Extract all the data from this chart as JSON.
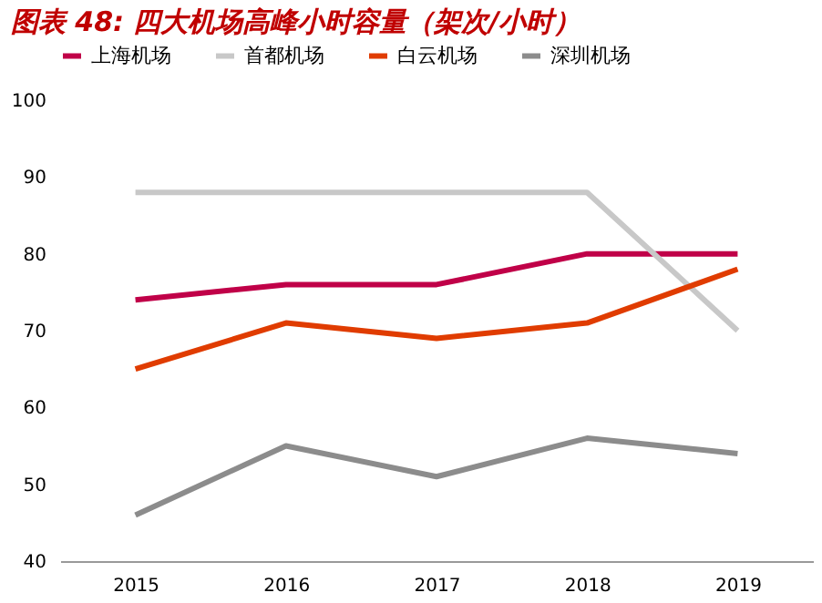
{
  "chart_data": {
    "type": "line",
    "title": "图表 48:  四大机场高峰小时容量（架次/小时）",
    "categories": [
      "2015",
      "2016",
      "2017",
      "2018",
      "2019"
    ],
    "series": [
      {
        "name": "上海机场",
        "color": "#c00048",
        "values": [
          74,
          76,
          76,
          80,
          80
        ]
      },
      {
        "name": "首都机场",
        "color": "#c8c8c8",
        "values": [
          88,
          88,
          88,
          88,
          70
        ]
      },
      {
        "name": "白云机场",
        "color": "#e03c00",
        "values": [
          65,
          71,
          69,
          71,
          78
        ]
      },
      {
        "name": "深圳机场",
        "color": "#8c8c8c",
        "values": [
          46,
          55,
          51,
          56,
          54
        ]
      }
    ],
    "ylim": [
      40,
      100
    ],
    "yticks": [
      40,
      50,
      60,
      70,
      80,
      90,
      100
    ],
    "grid": false,
    "legend": "top",
    "marker": "none",
    "line_style": "solid"
  }
}
